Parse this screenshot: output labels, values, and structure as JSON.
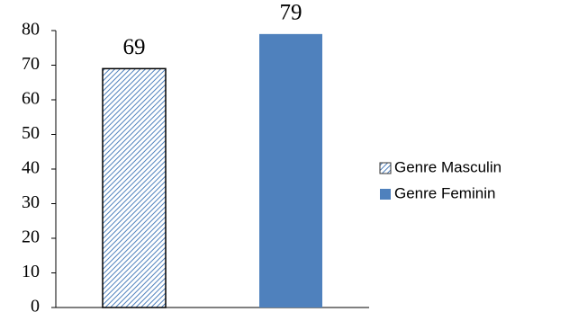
{
  "chart_data": {
    "type": "bar",
    "categories": [
      null
    ],
    "series": [
      {
        "name": "Genre Masculin",
        "color": "#4f81bd",
        "hatch": true,
        "values": [
          69
        ]
      },
      {
        "name": "Genre Feminin",
        "color": "#4f81bd",
        "hatch": false,
        "values": [
          79
        ]
      }
    ],
    "ylim": [
      0,
      80
    ],
    "yticks": [
      0,
      10,
      20,
      30,
      40,
      50,
      60,
      70,
      80
    ],
    "grid": false,
    "legend": "right"
  }
}
